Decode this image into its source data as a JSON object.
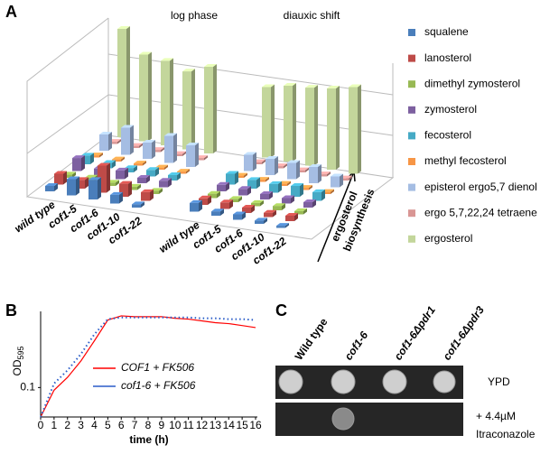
{
  "chart_data": [
    {
      "type": "bar3d",
      "label": "A",
      "annotations": [
        "log phase",
        "diauxic shift"
      ],
      "categories": [
        "wild type",
        "cof1-5",
        "cof1-6",
        "cof1-10",
        "cof1-22",
        "wild type",
        "cof1-5",
        "cof1-6",
        "cof1-10",
        "cof1-22"
      ],
      "depth_label": [
        "ergosterol",
        "biosynthesis"
      ],
      "series": [
        {
          "name": "squalene",
          "color": "#4a7ebb",
          "values": [
            5,
            15,
            18,
            8,
            3,
            8,
            4,
            5,
            3,
            2
          ]
        },
        {
          "name": "lanosterol",
          "color": "#be4b48",
          "values": [
            10,
            8,
            25,
            12,
            8,
            6,
            6,
            5,
            4,
            5
          ]
        },
        {
          "name": "dimethyl zymosterol",
          "color": "#98b954",
          "values": [
            3,
            4,
            3,
            3,
            3,
            4,
            3,
            3,
            4,
            3
          ]
        },
        {
          "name": "zymosterol",
          "color": "#7d60a0",
          "values": [
            12,
            6,
            8,
            5,
            6,
            6,
            6,
            5,
            5,
            5
          ]
        },
        {
          "name": "fecosterol",
          "color": "#46aac5",
          "values": [
            8,
            5,
            4,
            6,
            5,
            10,
            8,
            8,
            10,
            8
          ]
        },
        {
          "name": "methyl  fecosterol",
          "color": "#f79646",
          "values": [
            2,
            2,
            2,
            2,
            2,
            2,
            2,
            2,
            2,
            2
          ]
        },
        {
          "name": "episterol ergo5,7 dienol",
          "color": "#a5bde3",
          "values": [
            15,
            25,
            15,
            25,
            20,
            15,
            15,
            15,
            15,
            10
          ]
        },
        {
          "name": "ergo 5,7,22,24 tetraene",
          "color": "#d99694",
          "values": [
            2,
            2,
            2,
            2,
            2,
            2,
            2,
            2,
            2,
            2
          ]
        },
        {
          "name": "ergosterol",
          "color": "#c3d69b",
          "values": [
            100,
            80,
            78,
            72,
            80,
            65,
            70,
            72,
            75,
            80
          ]
        }
      ]
    },
    {
      "type": "line",
      "label": "B",
      "x_label": "time (h)",
      "y_label": "OD",
      "y_label_sub": "595",
      "x": [
        0,
        1,
        2,
        3,
        4,
        5,
        6,
        7,
        8,
        9,
        10,
        11,
        12,
        13,
        14,
        15,
        16
      ],
      "xlim": [
        0,
        16
      ],
      "xticks": [
        0,
        1,
        2,
        3,
        4,
        5,
        6,
        7,
        8,
        9,
        10,
        11,
        12,
        13,
        14,
        15,
        16
      ],
      "ylim": [
        0.05,
        0.6
      ],
      "yticks": [
        0.1
      ],
      "log_y": true,
      "series": [
        {
          "name": "COF1 + FK506",
          "color": "#ff0000",
          "dash": false,
          "values": [
            0.05,
            0.094,
            0.127,
            0.187,
            0.3,
            0.49,
            0.54,
            0.53,
            0.53,
            0.53,
            0.51,
            0.5,
            0.48,
            0.46,
            0.45,
            0.43,
            0.41
          ]
        },
        {
          "name": "cof1-6 + FK506",
          "color": "#2a5cc8",
          "dash": true,
          "values": [
            0.05,
            0.11,
            0.15,
            0.22,
            0.35,
            0.5,
            0.52,
            0.52,
            0.52,
            0.52,
            0.52,
            0.52,
            0.51,
            0.51,
            0.5,
            0.5,
            0.49
          ]
        }
      ]
    }
  ],
  "panel_c": {
    "label": "C",
    "columns": [
      "Wild type",
      "cof1-6",
      "cof1-6Δpdr1",
      "cof1-6Δpdr3"
    ],
    "rows": [
      [
        "YPD"
      ],
      [
        "+ 4.4µM",
        "Itraconazole"
      ]
    ]
  }
}
